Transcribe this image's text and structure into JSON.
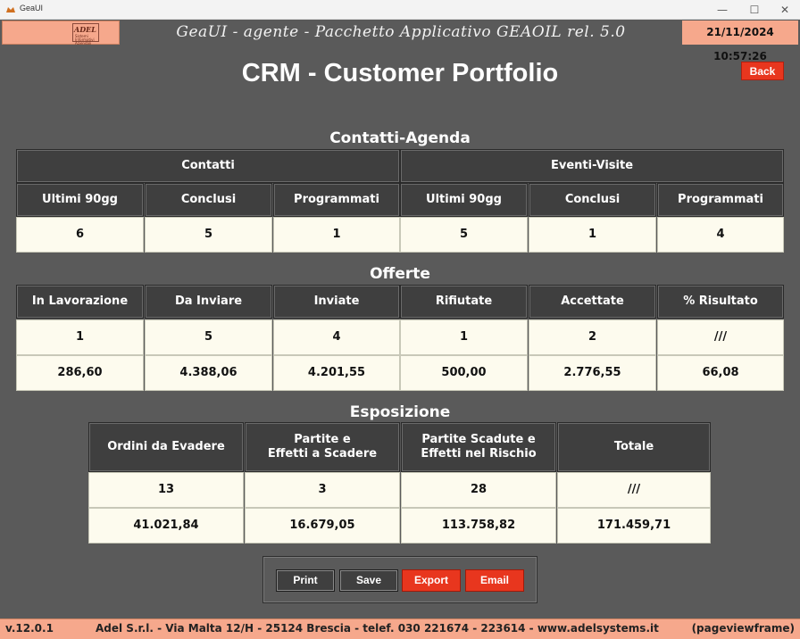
{
  "window": {
    "title": "GeaUI",
    "minimize": "—",
    "maximize": "☐",
    "close": "✕"
  },
  "header": {
    "logo_text": "ADEL",
    "logo_sub": "Sistemi Informativi Aziendali",
    "app_title": "GeaUI - agente - Pacchetto Applicativo GEAOIL rel. 5.0",
    "datetime": "21/11/2024 10:57:26"
  },
  "page": {
    "title": "CRM - Customer Portfolio",
    "back_label": "Back"
  },
  "contatti_agenda": {
    "title": "Contatti-Agenda",
    "group_contatti": "Contatti",
    "group_eventi": "Eventi-Visite",
    "headers": [
      "Ultimi 90gg",
      "Conclusi",
      "Programmati",
      "Ultimi 90gg",
      "Conclusi",
      "Programmati"
    ],
    "values": [
      "6",
      "5",
      "1",
      "5",
      "1",
      "4"
    ]
  },
  "offerte": {
    "title": "Offerte",
    "headers": [
      "In Lavorazione",
      "Da Inviare",
      "Inviate",
      "Rifiutate",
      "Accettate",
      "% Risultato"
    ],
    "counts": [
      "1",
      "5",
      "4",
      "1",
      "2",
      "///"
    ],
    "amounts": [
      "286,60",
      "4.388,06",
      "4.201,55",
      "500,00",
      "2.776,55",
      "66,08"
    ]
  },
  "esposizione": {
    "title": "Esposizione",
    "headers": [
      {
        "line1": "Ordini da Evadere",
        "line2": ""
      },
      {
        "line1": "Partite e",
        "line2": "Effetti a Scadere"
      },
      {
        "line1": "Partite Scadute e",
        "line2": "Effetti nel Rischio"
      },
      {
        "line1": "Totale",
        "line2": ""
      }
    ],
    "counts": [
      "13",
      "3",
      "28",
      "///"
    ],
    "amounts": [
      "41.021,84",
      "16.679,05",
      "113.758,82",
      "171.459,71"
    ]
  },
  "actions": {
    "print": "Print",
    "save": "Save",
    "export": "Export",
    "email": "Email"
  },
  "footer": {
    "version": "v.12.0.1",
    "address": "Adel S.r.l. - Via Malta 12/H - 25124 Brescia - telef. 030 221674 - 223614 - www.adelsystems.it",
    "frame": "(pageviewframe)"
  },
  "colors": {
    "background": "#5a5a5a",
    "accent_salmon": "#f6a88c",
    "button_red": "#e8361e",
    "header_cell": "#3f3f3f",
    "value_cell": "#fdfbee"
  }
}
